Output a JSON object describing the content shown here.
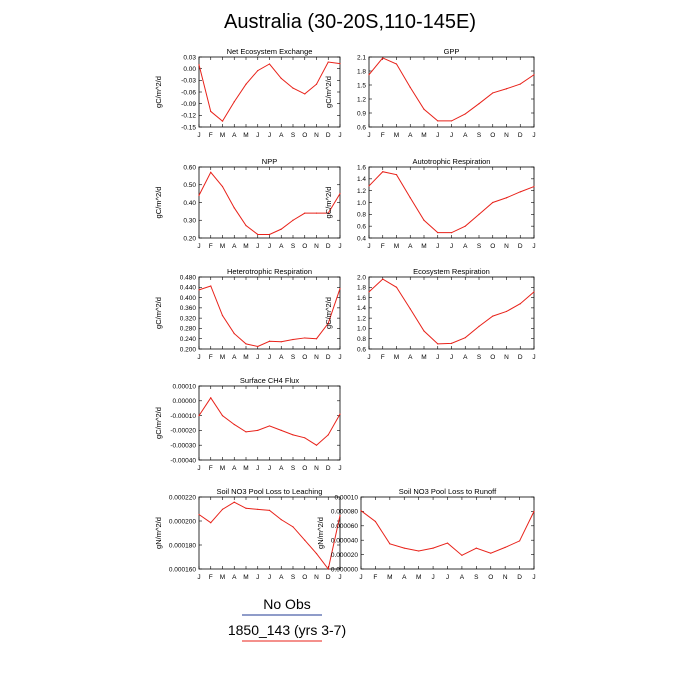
{
  "title": "Australia (30-20S,110-145E)",
  "legend": {
    "entries": [
      {
        "label": "No Obs",
        "color": "#1f3a93"
      },
      {
        "label": "1850_143 (yrs 3-7)",
        "color": "#e8221a"
      }
    ]
  },
  "chart_data": [
    {
      "type": "line",
      "title": "Net Ecosystem Exchange",
      "ylabel": "gC/m^2/d",
      "x": [
        "J",
        "F",
        "M",
        "A",
        "M",
        "J",
        "J",
        "A",
        "S",
        "O",
        "N",
        "D",
        "J"
      ],
      "ylim": [
        -0.15,
        0.03
      ],
      "yticks": [
        "0.03",
        "0.00",
        "-0.03",
        "-0.06",
        "-0.09",
        "-0.12",
        "-0.15"
      ],
      "series": [
        {
          "color": "#e8221a",
          "values": [
            0.01,
            -0.11,
            -0.135,
            -0.085,
            -0.04,
            -0.005,
            0.012,
            -0.025,
            -0.05,
            -0.065,
            -0.04,
            0.017,
            0.013
          ]
        }
      ]
    },
    {
      "type": "line",
      "title": "GPP",
      "ylabel": "gC/m^2/d",
      "x": [
        "J",
        "F",
        "M",
        "A",
        "M",
        "J",
        "J",
        "A",
        "S",
        "O",
        "N",
        "D",
        "J"
      ],
      "ylim": [
        0.6,
        2.1
      ],
      "yticks": [
        "2.1",
        "1.8",
        "1.5",
        "1.2",
        "0.9",
        "0.6"
      ],
      "series": [
        {
          "color": "#e8221a",
          "values": [
            1.72,
            2.08,
            1.95,
            1.45,
            0.98,
            0.73,
            0.73,
            0.88,
            1.1,
            1.33,
            1.42,
            1.52,
            1.72
          ]
        }
      ]
    },
    {
      "type": "line",
      "title": "NPP",
      "ylabel": "gC/m^2/d",
      "x": [
        "J",
        "F",
        "M",
        "A",
        "M",
        "J",
        "J",
        "A",
        "S",
        "O",
        "N",
        "D",
        "J"
      ],
      "ylim": [
        0.2,
        0.6
      ],
      "yticks": [
        "0.60",
        "0.50",
        "0.40",
        "0.30",
        "0.20"
      ],
      "series": [
        {
          "color": "#e8221a",
          "values": [
            0.44,
            0.57,
            0.49,
            0.37,
            0.27,
            0.22,
            0.22,
            0.25,
            0.3,
            0.34,
            0.34,
            0.34,
            0.45
          ]
        }
      ]
    },
    {
      "type": "line",
      "title": "Autotrophic Respiration",
      "ylabel": "gC/m^2/d",
      "x": [
        "J",
        "F",
        "M",
        "A",
        "M",
        "J",
        "J",
        "A",
        "S",
        "O",
        "N",
        "D",
        "J"
      ],
      "ylim": [
        0.4,
        1.6
      ],
      "yticks": [
        "1.6",
        "1.4",
        "1.2",
        "1.0",
        "0.8",
        "0.6",
        "0.4"
      ],
      "series": [
        {
          "color": "#e8221a",
          "values": [
            1.28,
            1.52,
            1.47,
            1.08,
            0.7,
            0.49,
            0.49,
            0.6,
            0.8,
            1.0,
            1.08,
            1.18,
            1.27
          ]
        }
      ]
    },
    {
      "type": "line",
      "title": "Heterotrophic Respiration",
      "ylabel": "gC/m^2/d",
      "x": [
        "J",
        "F",
        "M",
        "A",
        "M",
        "J",
        "J",
        "A",
        "S",
        "O",
        "N",
        "D",
        "J"
      ],
      "ylim": [
        0.2,
        0.48
      ],
      "yticks": [
        "0.480",
        "0.440",
        "0.400",
        "0.360",
        "0.320",
        "0.280",
        "0.240",
        "0.200"
      ],
      "series": [
        {
          "color": "#e8221a",
          "values": [
            0.43,
            0.445,
            0.33,
            0.26,
            0.22,
            0.21,
            0.23,
            0.228,
            0.237,
            0.243,
            0.24,
            0.3,
            0.435
          ]
        }
      ]
    },
    {
      "type": "line",
      "title": "Ecosystem Respiration",
      "ylabel": "gC/m^2/d",
      "x": [
        "J",
        "F",
        "M",
        "A",
        "M",
        "J",
        "J",
        "A",
        "S",
        "O",
        "N",
        "D",
        "J"
      ],
      "ylim": [
        0.6,
        2.0
      ],
      "yticks": [
        "2.0",
        "1.8",
        "1.6",
        "1.4",
        "1.2",
        "1.0",
        "0.8",
        "0.6"
      ],
      "series": [
        {
          "color": "#e8221a",
          "values": [
            1.71,
            1.96,
            1.8,
            1.38,
            0.95,
            0.7,
            0.71,
            0.82,
            1.04,
            1.24,
            1.33,
            1.48,
            1.71
          ]
        }
      ]
    },
    {
      "type": "line",
      "title": "Surface CH4 Flux",
      "ylabel": "gC/m^2/d",
      "x": [
        "J",
        "F",
        "M",
        "A",
        "M",
        "J",
        "J",
        "A",
        "S",
        "O",
        "N",
        "D",
        "J"
      ],
      "ylim": [
        -0.0004,
        0.0001
      ],
      "yticks": [
        "0.00010",
        "0.00000",
        "-0.00010",
        "-0.00020",
        "-0.00030",
        "-0.00040"
      ],
      "series": [
        {
          "color": "#e8221a",
          "values": [
            -0.0001,
            2e-05,
            -0.0001,
            -0.00016,
            -0.00021,
            -0.0002,
            -0.00017,
            -0.0002,
            -0.00023,
            -0.00025,
            -0.0003,
            -0.00023,
            -9e-05
          ]
        }
      ]
    },
    {
      "type": "line",
      "title": "Soil NO3 Pool Loss to Leaching",
      "ylabel": "gN/m^2/d",
      "x": [
        "J",
        "F",
        "M",
        "A",
        "M",
        "J",
        "J",
        "A",
        "S",
        "O",
        "N",
        "D",
        "J"
      ],
      "ylim": [
        0.00015,
        0.00022
      ],
      "yticks": [
        "0.000220",
        "0.000200",
        "0.000180",
        "0.000160"
      ],
      "series": [
        {
          "color": "#e8221a",
          "values": [
            0.000203,
            0.000195,
            0.000208,
            0.000215,
            0.000209,
            0.000208,
            0.000207,
            0.000198,
            0.000191,
            0.000178,
            0.000165,
            0.00015,
            0.000202
          ]
        }
      ]
    },
    {
      "type": "line",
      "title": "Soil NO3 Pool Loss to Runoff",
      "ylabel": "gN/m^2/d",
      "x": [
        "J",
        "F",
        "M",
        "A",
        "M",
        "J",
        "J",
        "A",
        "S",
        "O",
        "N",
        "D",
        "J"
      ],
      "ylim": [
        0.0,
        0.0001
      ],
      "yticks": [
        "0.00010",
        "0.000080",
        "0.000060",
        "0.000040",
        "0.000020",
        "0.000000"
      ],
      "series": [
        {
          "color": "#e8221a",
          "values": [
            8.1e-05,
            6.6e-05,
            3.5e-05,
            2.9e-05,
            2.5e-05,
            2.9e-05,
            3.6e-05,
            1.9e-05,
            2.9e-05,
            2.2e-05,
            3e-05,
            3.9e-05,
            8e-05
          ]
        }
      ]
    }
  ]
}
